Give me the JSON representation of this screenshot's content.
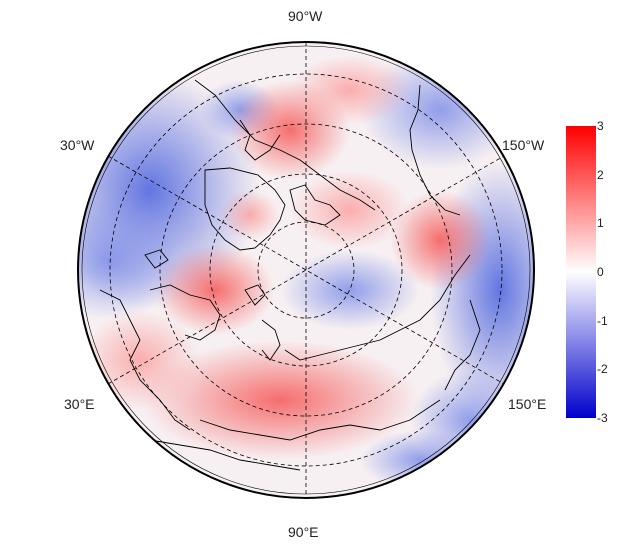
{
  "map": {
    "projection": "north-polar-stereographic",
    "longitude_labels": {
      "top": "90°W",
      "upper_left": "30°W",
      "upper_right": "150°W",
      "lower_left": "30°E",
      "lower_right": "150°E",
      "bottom": "90°E"
    },
    "colors": {
      "negative": "#0000ff",
      "neutral": "#ffffff",
      "positive": "#ff0000",
      "coastline": "#000000",
      "graticule": "#000000"
    }
  },
  "colorbar": {
    "ticks": [
      "3",
      "2",
      "1",
      "0",
      "-1",
      "-2",
      "-3"
    ],
    "range": [
      -3,
      3
    ]
  }
}
